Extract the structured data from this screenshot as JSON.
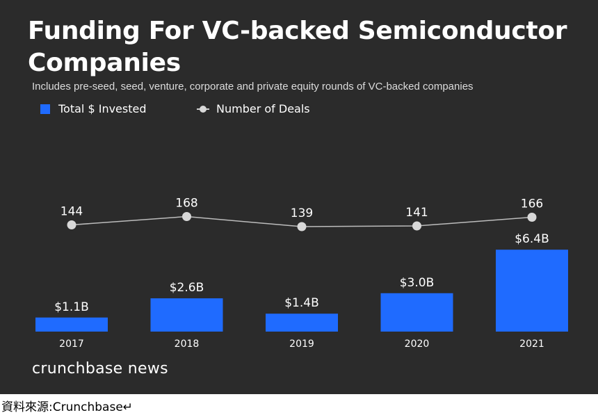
{
  "source_note": "資料來源:Crunchbase↵",
  "brand": "crunchbase news",
  "chart_data": {
    "type": "bar",
    "title": "Funding For VC-backed Semiconductor Companies",
    "subtitle": "Includes pre-seed, seed, venture, corporate and private equity rounds of VC-backed companies",
    "categories": [
      "2017",
      "2018",
      "2019",
      "2020",
      "2021"
    ],
    "series": [
      {
        "name": "Total $ Invested",
        "kind": "bar",
        "color": "#1f6bff",
        "values": [
          1.1,
          2.6,
          1.4,
          3.0,
          6.4
        ],
        "labels": [
          "$1.1B",
          "$2.6B",
          "$1.4B",
          "$3.0B",
          "$6.4B"
        ]
      },
      {
        "name": "Number of Deals",
        "kind": "line",
        "color": "#d8d8d8",
        "values": [
          144,
          168,
          139,
          141,
          166
        ],
        "labels": [
          "144",
          "168",
          "139",
          "141",
          "166"
        ]
      }
    ],
    "grid": false,
    "legend_position": "top-left"
  }
}
